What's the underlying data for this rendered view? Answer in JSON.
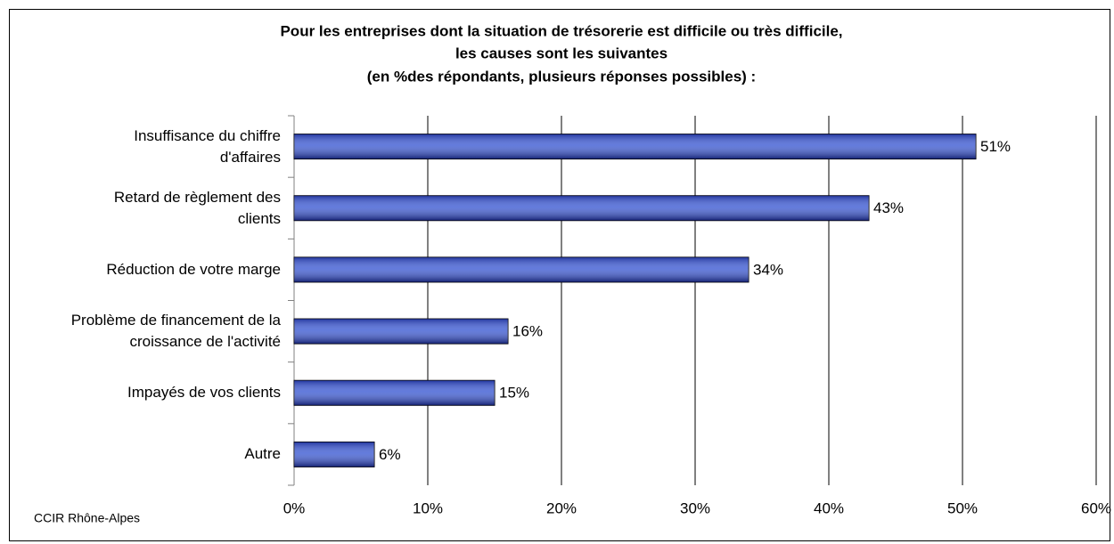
{
  "chart_data": {
    "type": "hbar",
    "title": [
      "Pour les entreprises dont la situation de trésorerie est difficile ou très difficile,",
      "les causes sont les suivantes",
      "(en %des répondants, plusieurs réponses possibles) :"
    ],
    "categories": [
      "Insuffisance du chiffre d'affaires",
      "Retard de règlement des clients",
      "Réduction de votre marge",
      "Problème de financement de la croissance de l'activité",
      "Impayés de vos clients",
      "Autre"
    ],
    "values": [
      51,
      43,
      34,
      16,
      15,
      6
    ],
    "value_labels": [
      "51%",
      "43%",
      "34%",
      "16%",
      "15%",
      "6%"
    ],
    "color": "#2f4fd0",
    "xlim": [
      0,
      60
    ],
    "xticks": [
      {
        "value": 0,
        "label": "0%"
      },
      {
        "value": 10,
        "label": "10%"
      },
      {
        "value": 20,
        "label": "20%"
      },
      {
        "value": 30,
        "label": "30%"
      },
      {
        "value": 40,
        "label": "40%"
      },
      {
        "value": 50,
        "label": "50%"
      },
      {
        "value": 60,
        "label": "60%"
      }
    ],
    "grid": true,
    "source": "CCIR Rhône-Alpes"
  }
}
